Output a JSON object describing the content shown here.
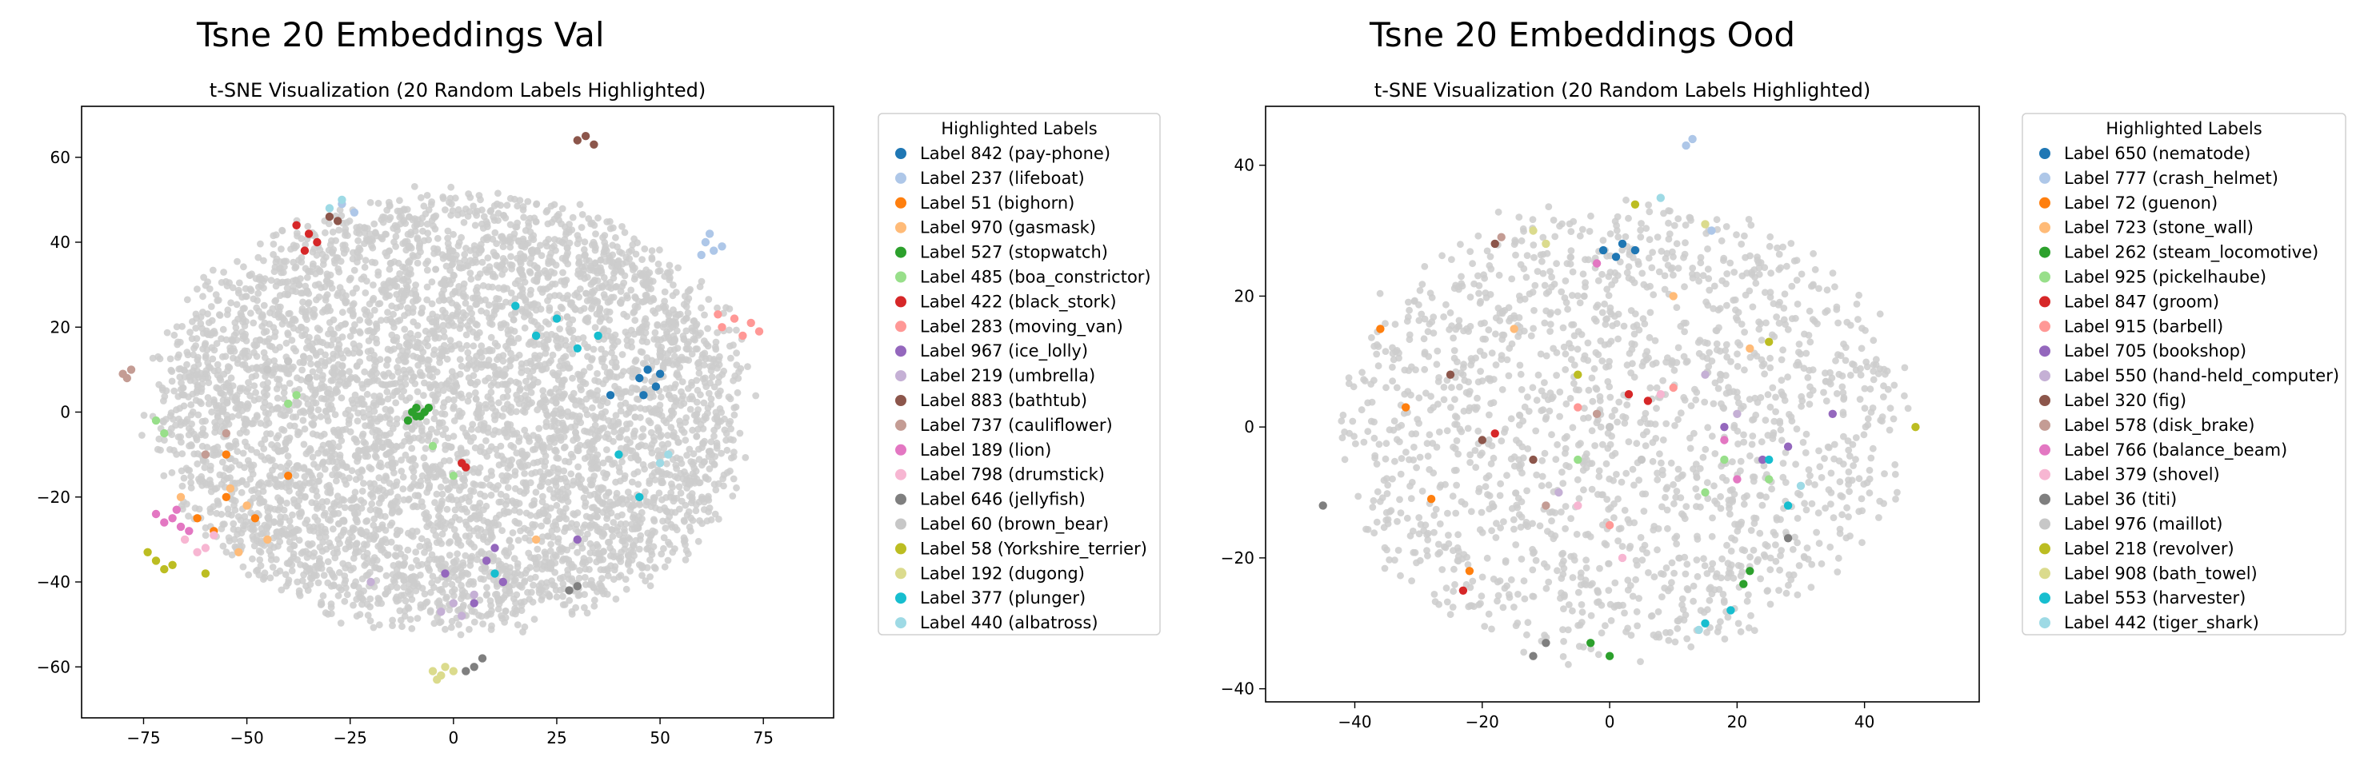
{
  "figure": {
    "titles": [
      "Tsne 20 Embeddings Val",
      "Tsne 20 Embeddings Ood"
    ]
  },
  "chart_data": [
    {
      "type": "scatter",
      "suptitle": "Tsne 20 Embeddings Val",
      "title": "t-SNE Visualization (20 Random Labels Highlighted)",
      "xlim": [
        -90,
        92
      ],
      "ylim": [
        -72,
        72
      ],
      "xticks": [
        -75,
        -50,
        -25,
        0,
        25,
        50,
        75
      ],
      "yticks": [
        -60,
        -40,
        -20,
        0,
        20,
        40,
        60
      ],
      "background_color": "#cccccc",
      "background_description": "dense cloud of grey points (all other labels)",
      "legend_title": "Highlighted Labels",
      "legend_position": "outside-right",
      "series": [
        {
          "name": "Label 842 (pay-phone)",
          "color": "#1f77b4",
          "points": [
            [
              45,
              8
            ],
            [
              47,
              10
            ],
            [
              49,
              6
            ],
            [
              46,
              4
            ],
            [
              50,
              9
            ],
            [
              38,
              4
            ]
          ]
        },
        {
          "name": "Label 237 (lifeboat)",
          "color": "#aec7e8",
          "points": [
            [
              61,
              40
            ],
            [
              63,
              38
            ],
            [
              62,
              42
            ],
            [
              65,
              39
            ],
            [
              60,
              37
            ],
            [
              -27,
              49
            ],
            [
              -24,
              47
            ]
          ]
        },
        {
          "name": "Label 51 (bighorn)",
          "color": "#ff7f0e",
          "points": [
            [
              -62,
              -25
            ],
            [
              -58,
              -28
            ],
            [
              -55,
              -20
            ],
            [
              -48,
              -25
            ],
            [
              -40,
              -15
            ],
            [
              -55,
              -10
            ]
          ]
        },
        {
          "name": "Label 970 (gasmask)",
          "color": "#ffbb78",
          "points": [
            [
              -54,
              -18
            ],
            [
              -50,
              -22
            ],
            [
              -45,
              -30
            ],
            [
              -52,
              -33
            ],
            [
              20,
              -30
            ],
            [
              -66,
              -20
            ]
          ]
        },
        {
          "name": "Label 527 (stopwatch)",
          "color": "#2ca02c",
          "points": [
            [
              -10,
              0
            ],
            [
              -9,
              1
            ],
            [
              -8,
              -1
            ],
            [
              -11,
              -2
            ],
            [
              -7,
              0
            ],
            [
              -9,
              -1
            ],
            [
              -6,
              1
            ]
          ]
        },
        {
          "name": "Label 485 (boa_constrictor)",
          "color": "#98df8a",
          "points": [
            [
              -40,
              2
            ],
            [
              -38,
              4
            ],
            [
              -72,
              -2
            ],
            [
              -70,
              -5
            ],
            [
              0,
              -15
            ],
            [
              -5,
              -8
            ]
          ]
        },
        {
          "name": "Label 422 (black_stork)",
          "color": "#d62728",
          "points": [
            [
              -35,
              42
            ],
            [
              -38,
              44
            ],
            [
              -33,
              40
            ],
            [
              -36,
              38
            ],
            [
              2,
              -12
            ],
            [
              3,
              -13
            ]
          ]
        },
        {
          "name": "Label 283 (moving_van)",
          "color": "#ff9896",
          "points": [
            [
              65,
              20
            ],
            [
              68,
              22
            ],
            [
              70,
              18
            ],
            [
              72,
              21
            ],
            [
              64,
              23
            ],
            [
              74,
              19
            ]
          ]
        },
        {
          "name": "Label 967 (ice_lolly)",
          "color": "#9467bd",
          "points": [
            [
              8,
              -35
            ],
            [
              12,
              -40
            ],
            [
              5,
              -45
            ],
            [
              30,
              -30
            ],
            [
              10,
              -32
            ],
            [
              -2,
              -38
            ]
          ]
        },
        {
          "name": "Label 219 (umbrella)",
          "color": "#c5b0d5",
          "points": [
            [
              0,
              -45
            ],
            [
              -3,
              -47
            ],
            [
              2,
              -48
            ],
            [
              5,
              -43
            ],
            [
              -20,
              -40
            ]
          ]
        },
        {
          "name": "Label 883 (bathtub)",
          "color": "#8c564b",
          "points": [
            [
              32,
              65
            ],
            [
              34,
              63
            ],
            [
              30,
              64
            ],
            [
              -30,
              46
            ],
            [
              -28,
              45
            ]
          ]
        },
        {
          "name": "Label 737 (cauliflower)",
          "color": "#c49c94",
          "points": [
            [
              -78,
              10
            ],
            [
              -80,
              9
            ],
            [
              -79,
              8
            ],
            [
              -60,
              -10
            ],
            [
              -55,
              -5
            ]
          ]
        },
        {
          "name": "Label 189 (lion)",
          "color": "#e377c2",
          "points": [
            [
              -70,
              -26
            ],
            [
              -68,
              -25
            ],
            [
              -66,
              -27
            ],
            [
              -72,
              -24
            ],
            [
              -64,
              -28
            ],
            [
              -67,
              -23
            ]
          ]
        },
        {
          "name": "Label 798 (drumstick)",
          "color": "#f7b6d2",
          "points": [
            [
              -65,
              -30
            ],
            [
              -60,
              -32
            ],
            [
              -58,
              -29
            ],
            [
              -62,
              -33
            ]
          ]
        },
        {
          "name": "Label 646 (jellyfish)",
          "color": "#7f7f7f",
          "points": [
            [
              5,
              -60
            ],
            [
              7,
              -58
            ],
            [
              3,
              -61
            ],
            [
              28,
              -42
            ],
            [
              30,
              -41
            ]
          ]
        },
        {
          "name": "Label 60 (brown_bear)",
          "color": "#c7c7c7",
          "points": [
            [
              -45,
              10
            ],
            [
              -40,
              12
            ],
            [
              -35,
              8
            ]
          ]
        },
        {
          "name": "Label 58 (Yorkshire_terrier)",
          "color": "#bcbd22",
          "points": [
            [
              -72,
              -35
            ],
            [
              -70,
              -37
            ],
            [
              -68,
              -36
            ],
            [
              -60,
              -38
            ],
            [
              -74,
              -33
            ]
          ]
        },
        {
          "name": "Label 192 (dugong)",
          "color": "#dbdb8d",
          "points": [
            [
              -3,
              -62
            ],
            [
              -5,
              -61
            ],
            [
              -2,
              -60
            ],
            [
              -4,
              -63
            ],
            [
              0,
              -61
            ]
          ]
        },
        {
          "name": "Label 377 (plunger)",
          "color": "#17becf",
          "points": [
            [
              15,
              25
            ],
            [
              20,
              18
            ],
            [
              25,
              22
            ],
            [
              30,
              15
            ],
            [
              40,
              -10
            ],
            [
              45,
              -20
            ],
            [
              10,
              -38
            ],
            [
              35,
              18
            ]
          ]
        },
        {
          "name": "Label 440 (albatross)",
          "color": "#9edae5",
          "points": [
            [
              -27,
              50
            ],
            [
              -30,
              48
            ],
            [
              50,
              -12
            ],
            [
              52,
              -10
            ]
          ]
        }
      ]
    },
    {
      "type": "scatter",
      "suptitle": "Tsne 20 Embeddings Ood",
      "title": "t-SNE Visualization (20 Random Labels Highlighted)",
      "xlim": [
        -54,
        58
      ],
      "ylim": [
        -42,
        49
      ],
      "xticks": [
        -40,
        -20,
        0,
        20,
        40
      ],
      "yticks": [
        -40,
        -20,
        0,
        20,
        40
      ],
      "background_color": "#cccccc",
      "background_description": "sparser cloud of grey points (all other labels)",
      "legend_title": "Highlighted Labels",
      "legend_position": "outside-right",
      "series": [
        {
          "name": "Label 650 (nematode)",
          "color": "#1f77b4",
          "points": [
            [
              2,
              28
            ],
            [
              4,
              27
            ],
            [
              1,
              26
            ],
            [
              -1,
              27
            ]
          ]
        },
        {
          "name": "Label 777 (crash_helmet)",
          "color": "#aec7e8",
          "points": [
            [
              12,
              43
            ],
            [
              13,
              44
            ],
            [
              16,
              30
            ]
          ]
        },
        {
          "name": "Label 72 (guenon)",
          "color": "#ff7f0e",
          "points": [
            [
              -32,
              3
            ],
            [
              -28,
              -11
            ],
            [
              -22,
              -22
            ],
            [
              -36,
              15
            ]
          ]
        },
        {
          "name": "Label 723 (stone_wall)",
          "color": "#ffbb78",
          "points": [
            [
              10,
              20
            ],
            [
              22,
              12
            ],
            [
              -15,
              15
            ]
          ]
        },
        {
          "name": "Label 262 (steam_locomotive)",
          "color": "#2ca02c",
          "points": [
            [
              22,
              -22
            ],
            [
              21,
              -24
            ],
            [
              0,
              -35
            ],
            [
              -3,
              -33
            ]
          ]
        },
        {
          "name": "Label 925 (pickelhaube)",
          "color": "#98df8a",
          "points": [
            [
              15,
              -10
            ],
            [
              18,
              -5
            ],
            [
              25,
              -8
            ],
            [
              -5,
              -5
            ]
          ]
        },
        {
          "name": "Label 847 (groom)",
          "color": "#d62728",
          "points": [
            [
              -23,
              -25
            ],
            [
              6,
              4
            ],
            [
              -18,
              -1
            ],
            [
              3,
              5
            ]
          ]
        },
        {
          "name": "Label 915 (barbell)",
          "color": "#ff9896",
          "points": [
            [
              -5,
              3
            ],
            [
              10,
              6
            ],
            [
              0,
              -15
            ]
          ]
        },
        {
          "name": "Label 705 (bookshop)",
          "color": "#9467bd",
          "points": [
            [
              24,
              -5
            ],
            [
              28,
              -3
            ],
            [
              35,
              2
            ],
            [
              18,
              0
            ]
          ]
        },
        {
          "name": "Label 550 (hand-held_computer)",
          "color": "#c5b0d5",
          "points": [
            [
              15,
              8
            ],
            [
              20,
              2
            ],
            [
              -8,
              -10
            ]
          ]
        },
        {
          "name": "Label 320 (fig)",
          "color": "#8c564b",
          "points": [
            [
              -18,
              28
            ],
            [
              -25,
              8
            ],
            [
              -12,
              -5
            ],
            [
              -20,
              -2
            ]
          ]
        },
        {
          "name": "Label 578 (disk_brake)",
          "color": "#c49c94",
          "points": [
            [
              -17,
              29
            ],
            [
              -2,
              2
            ],
            [
              -10,
              -12
            ]
          ]
        },
        {
          "name": "Label 766 (balance_beam)",
          "color": "#e377c2",
          "points": [
            [
              18,
              -2
            ],
            [
              20,
              -8
            ],
            [
              -2,
              25
            ]
          ]
        },
        {
          "name": "Label 379 (shovel)",
          "color": "#f7b6d2",
          "points": [
            [
              -5,
              -12
            ],
            [
              2,
              -20
            ],
            [
              8,
              5
            ]
          ]
        },
        {
          "name": "Label 36 (titi)",
          "color": "#7f7f7f",
          "points": [
            [
              -10,
              -33
            ],
            [
              28,
              -17
            ],
            [
              -45,
              -12
            ],
            [
              -12,
              -35
            ]
          ]
        },
        {
          "name": "Label 976 (maillot)",
          "color": "#c7c7c7",
          "points": [
            [
              0,
              0
            ],
            [
              5,
              -5
            ]
          ]
        },
        {
          "name": "Label 218 (revolver)",
          "color": "#bcbd22",
          "points": [
            [
              4,
              34
            ],
            [
              25,
              13
            ],
            [
              48,
              0
            ],
            [
              -5,
              8
            ]
          ]
        },
        {
          "name": "Label 908 (bath_towel)",
          "color": "#dbdb8d",
          "points": [
            [
              -10,
              28
            ],
            [
              -12,
              30
            ],
            [
              15,
              31
            ]
          ]
        },
        {
          "name": "Label 553 (harvester)",
          "color": "#17becf",
          "points": [
            [
              19,
              -28
            ],
            [
              28,
              -12
            ],
            [
              15,
              -30
            ],
            [
              25,
              -5
            ]
          ]
        },
        {
          "name": "Label 442 (tiger_shark)",
          "color": "#9edae5",
          "points": [
            [
              8,
              35
            ],
            [
              14,
              -31
            ],
            [
              30,
              -9
            ]
          ]
        }
      ]
    }
  ]
}
